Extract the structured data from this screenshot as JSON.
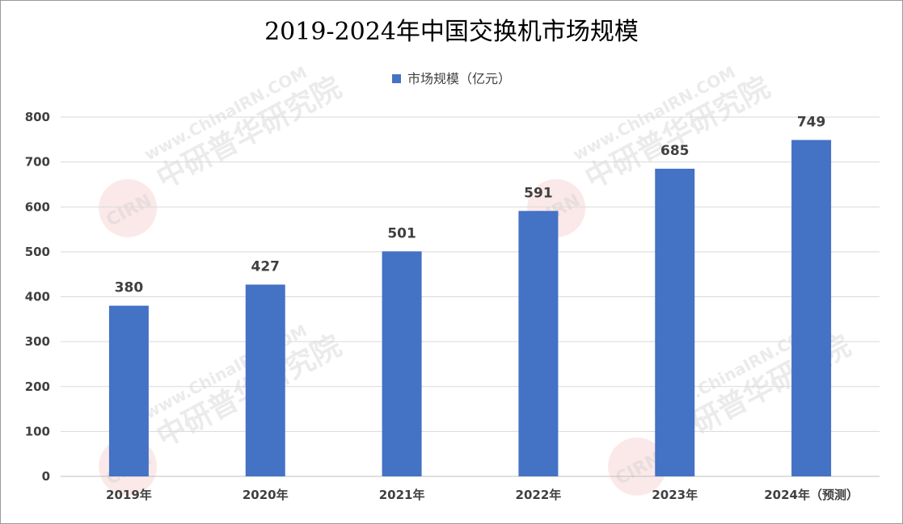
{
  "chart_data": {
    "type": "bar",
    "title": "2019-2024年中国交换机市场规模",
    "categories": [
      "2019年",
      "2020年",
      "2021年",
      "2022年",
      "2023年",
      "2024年（预测）"
    ],
    "series": [
      {
        "name": "市场规模（亿元）",
        "values": [
          380,
          427,
          501,
          591,
          685,
          749
        ],
        "color": "#4472C4"
      }
    ],
    "y_ticks": [
      0,
      100,
      200,
      300,
      400,
      500,
      600,
      700,
      800
    ],
    "ylim": [
      0,
      800
    ],
    "grid": true,
    "legend_position": "top",
    "data_labels": true
  },
  "watermark": {
    "site": "www.ChinaIRN.COM",
    "name": "中研普华研究院",
    "logo": "CIRN"
  }
}
